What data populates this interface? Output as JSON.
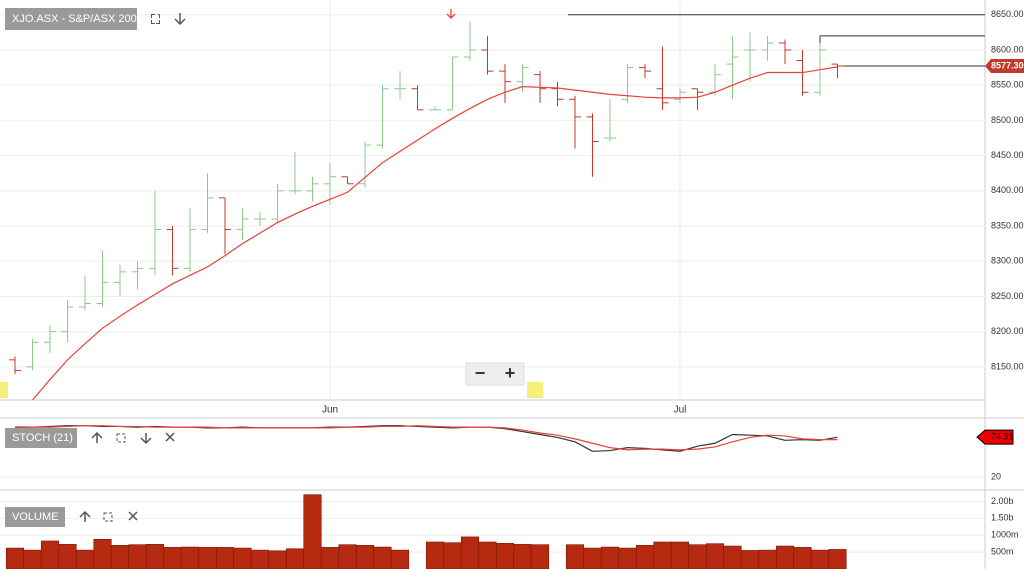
{
  "chart_data": [
    {
      "type": "ohlc",
      "title": "XJO.ASX - S&P/ASX 200",
      "controls": [
        "−",
        "+"
      ],
      "categories": [
        null,
        null,
        null,
        null,
        null,
        null,
        null,
        null,
        null,
        null,
        null,
        null,
        null,
        null,
        null,
        null,
        null,
        null,
        "Jun",
        null,
        null,
        null,
        null,
        null,
        null,
        null,
        null,
        null,
        null,
        null,
        null,
        null,
        null,
        null,
        null,
        null,
        null,
        null,
        "Jul",
        null,
        null,
        null,
        null,
        null,
        null,
        null,
        null,
        null
      ],
      "open": [
        8160,
        8150,
        8185,
        8200,
        8235,
        8240,
        8270,
        8285,
        8290,
        8345,
        8290,
        8345,
        8390,
        8345,
        8360,
        8360,
        8400,
        8400,
        8410,
        8420,
        8410,
        8465,
        8545,
        8545,
        8515,
        8515,
        8590,
        8600,
        8570,
        8555,
        8565,
        8545,
        8530,
        8505,
        8475,
        8530,
        8575,
        8545,
        8530,
        8545,
        8540,
        8580,
        8600,
        8600,
        8610,
        8585,
        8540,
        8580
      ],
      "high": [
        8165,
        8190,
        8210,
        8245,
        8280,
        8315,
        8295,
        8300,
        8400,
        8350,
        8375,
        8425,
        8390,
        8375,
        8370,
        8410,
        8455,
        8420,
        8440,
        8420,
        8470,
        8550,
        8570,
        8550,
        8520,
        8590,
        8640,
        8620,
        8580,
        8580,
        8570,
        8555,
        8535,
        8510,
        8530,
        8580,
        8580,
        8605,
        8545,
        8545,
        8580,
        8620,
        8625,
        8620,
        8615,
        8600,
        8610,
        8580
      ],
      "low": [
        8140,
        8145,
        8170,
        8185,
        8230,
        8235,
        8250,
        8260,
        8280,
        8280,
        8285,
        8340,
        8310,
        8330,
        8350,
        8355,
        8395,
        8385,
        8380,
        8410,
        8405,
        8460,
        8530,
        8515,
        8515,
        8515,
        8585,
        8565,
        8525,
        8540,
        8525,
        8520,
        8460,
        8420,
        8470,
        8525,
        8560,
        8515,
        8525,
        8515,
        8535,
        8530,
        8555,
        8585,
        8580,
        8535,
        8535,
        8560
      ],
      "close": [
        8145,
        8185,
        8200,
        8235,
        8240,
        8270,
        8285,
        8290,
        8345,
        8290,
        8345,
        8390,
        8345,
        8360,
        8360,
        8400,
        8400,
        8410,
        8420,
        8410,
        8465,
        8545,
        8545,
        8515,
        8515,
        8590,
        8600,
        8570,
        8555,
        8575,
        8545,
        8530,
        8505,
        8470,
        8475,
        8575,
        8570,
        8525,
        8540,
        8540,
        8565,
        8590,
        8600,
        8610,
        8600,
        8540,
        8600,
        8577.3
      ],
      "up_color": "#8cc98c",
      "down_color": "#c0392b",
      "overlay": {
        "color": "#e8403a",
        "values": [
          null,
          8103,
          8132,
          8160,
          8183,
          8205,
          8222,
          8238,
          8253,
          8268,
          8280,
          8292,
          8308,
          8325,
          8340,
          8355,
          8367,
          8378,
          8388,
          8398,
          8419,
          8440,
          8456,
          8472,
          8488,
          8503,
          8517,
          8530,
          8540,
          8548,
          8547,
          8546,
          8543,
          8540,
          8537,
          8535,
          8533,
          8532,
          8532,
          8533,
          8540,
          8550,
          8560,
          8568,
          8568,
          8568,
          8572,
          8576
        ]
      },
      "levels": [
        8650,
        8620
      ],
      "price_tag": {
        "value": 8577.3,
        "label": "8577.300"
      },
      "ylim": [
        8103,
        8671
      ],
      "yticks": [
        {
          "value": 8150,
          "label": "8150.00"
        },
        {
          "value": 8200,
          "label": "8200.00"
        },
        {
          "value": 8250,
          "label": "8250.00"
        },
        {
          "value": 8300,
          "label": "8300.00"
        },
        {
          "value": 8350,
          "label": "8350.00"
        },
        {
          "value": 8400,
          "label": "8400.00"
        },
        {
          "value": 8450,
          "label": "8450.00"
        },
        {
          "value": 8500,
          "label": "8500.00"
        },
        {
          "value": 8550,
          "label": "8550.00"
        },
        {
          "value": 8600,
          "label": "8600.00"
        },
        {
          "value": 8650,
          "label": "8650.00"
        }
      ],
      "grid": true
    },
    {
      "type": "line",
      "title": "STOCH (21)",
      "series": [
        {
          "color": "#333333",
          "values": [
            88,
            88,
            89,
            90,
            90,
            89,
            89,
            88,
            89,
            88,
            88,
            87,
            87,
            88,
            87,
            87,
            87,
            87,
            88,
            88,
            89,
            90,
            90,
            89,
            88,
            87,
            88,
            88,
            86,
            82,
            78,
            74,
            68,
            55,
            56,
            60,
            59,
            57,
            55,
            62,
            66,
            78,
            77,
            76,
            70,
            71,
            70,
            74.31
          ]
        },
        {
          "color": "#e8403a",
          "values": [
            87,
            88,
            88,
            89,
            90,
            90,
            89,
            89,
            88,
            88,
            88,
            88,
            87,
            87,
            87,
            87,
            87,
            87,
            87,
            88,
            88,
            89,
            89,
            90,
            89,
            88,
            88,
            88,
            87,
            84,
            80,
            77,
            72,
            66,
            60,
            57,
            58,
            58,
            57,
            58,
            61,
            68,
            74,
            77,
            76,
            72,
            71,
            71
          ]
        }
      ],
      "price_tag": 74.31,
      "ylim": [
        9,
        100.5
      ],
      "yticks": [
        20
      ],
      "grid": true
    },
    {
      "type": "bar",
      "title": "VOLUME",
      "color": "#b52a10",
      "values": [
        620000000,
        560000000,
        830000000,
        730000000,
        560000000,
        880000000,
        700000000,
        720000000,
        730000000,
        640000000,
        650000000,
        640000000,
        640000000,
        620000000,
        560000000,
        540000000,
        600000000,
        2200000000,
        640000000,
        720000000,
        700000000,
        650000000,
        560000000,
        null,
        800000000,
        780000000,
        950000000,
        800000000,
        760000000,
        730000000,
        720000000,
        null,
        720000000,
        620000000,
        650000000,
        620000000,
        700000000,
        800000000,
        800000000,
        720000000,
        750000000,
        680000000,
        550000000,
        560000000,
        680000000,
        640000000,
        560000000,
        580000000
      ],
      "ylim": [
        0,
        2250000000
      ],
      "yticks": [
        {
          "value": 2000000000,
          "label": "2.00b"
        },
        {
          "value": 1500000000,
          "label": "1.50b"
        },
        {
          "value": 1000000000,
          "label": "1000m"
        },
        {
          "value": 500000000,
          "label": "500m"
        }
      ],
      "grid": true
    }
  ]
}
